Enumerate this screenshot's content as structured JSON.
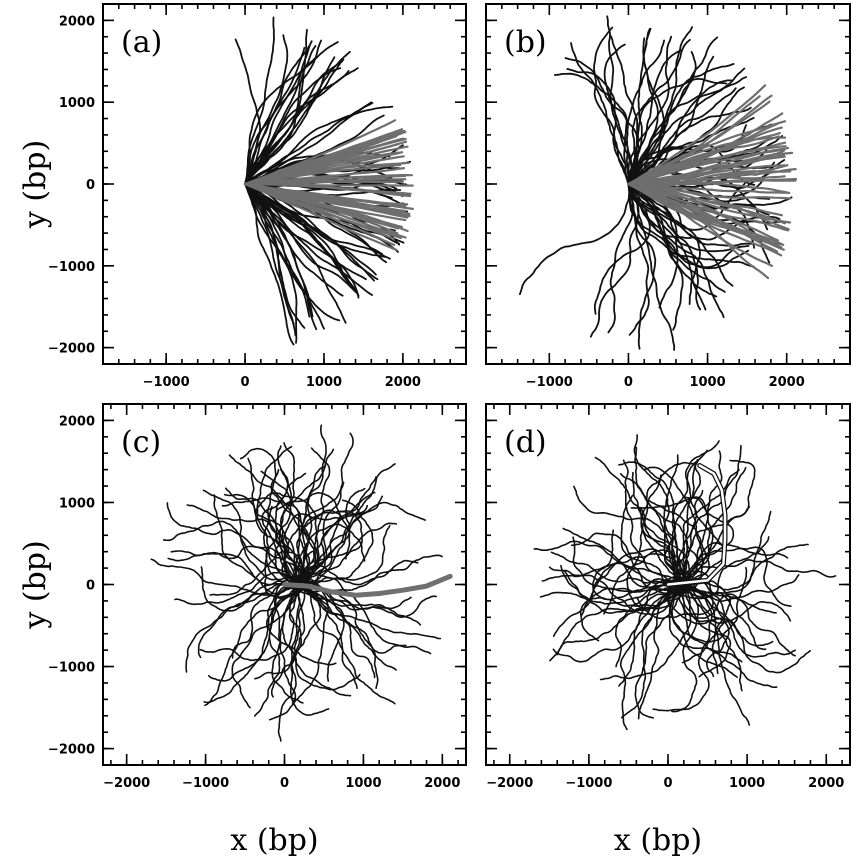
{
  "chart_data": [
    {
      "type": "line",
      "panel_label": "(a)",
      "xlabel": "",
      "ylabel": "y (bp)",
      "xlim": [
        -1800,
        2800
      ],
      "ylim": [
        -2200,
        2200
      ],
      "xticks": [
        -1000,
        0,
        1000,
        2000
      ],
      "yticks": [
        -2000,
        -1000,
        0,
        1000,
        2000
      ],
      "xtick_labels": [
        "−1000",
        "0",
        "1000",
        "2000"
      ],
      "ytick_labels": [
        "−2000",
        "−1000",
        "0",
        "1000",
        "2000"
      ],
      "trajectories": {
        "count_dark": 70,
        "count_gray": 45,
        "origin": [
          0,
          0
        ],
        "contour_length_bp": 2150,
        "persistence": "high",
        "fan_half_angle_deg": 22
      },
      "colors": {
        "dark": "#111111",
        "gray": "#6e6e6e"
      }
    },
    {
      "type": "line",
      "panel_label": "(b)",
      "xlabel": "",
      "ylabel": "",
      "xlim": [
        -1800,
        2800
      ],
      "ylim": [
        -2200,
        2200
      ],
      "xticks": [
        -1000,
        0,
        1000,
        2000
      ],
      "yticks": [
        -2000,
        -1000,
        0,
        1000,
        2000
      ],
      "xtick_labels": [
        "−1000",
        "0",
        "1000",
        "2000"
      ],
      "ytick_labels": [],
      "trajectories": {
        "count_dark": 70,
        "count_gray": 45,
        "origin": [
          0,
          0
        ],
        "contour_length_bp": 2150,
        "persistence": "medium",
        "fan_half_angle_deg": 30
      },
      "colors": {
        "dark": "#111111",
        "gray": "#6e6e6e"
      }
    },
    {
      "type": "line",
      "panel_label": "(c)",
      "xlabel": "x (bp)",
      "ylabel": "y (bp)",
      "xlim": [
        -2300,
        2300
      ],
      "ylim": [
        -2200,
        2200
      ],
      "xticks": [
        -2000,
        -1000,
        0,
        1000,
        2000
      ],
      "yticks": [
        -2000,
        -1000,
        0,
        1000,
        2000
      ],
      "xtick_labels": [
        "−2000",
        "−1000",
        "0",
        "1000",
        "2000"
      ],
      "ytick_labels": [
        "−2000",
        "−1000",
        "0",
        "1000",
        "2000"
      ],
      "trajectories": {
        "count_dark": 80,
        "origin": [
          0,
          0
        ],
        "contour_length_bp": 2150,
        "highlight": {
          "color": "#707070",
          "points": [
            [
              0,
              0
            ],
            [
              300,
              -20
            ],
            [
              600,
              -90
            ],
            [
              900,
              -130
            ],
            [
              1200,
              -110
            ],
            [
              1500,
              -70
            ],
            [
              1800,
              -20
            ],
            [
              2100,
              100
            ]
          ]
        }
      },
      "colors": {
        "dark": "#111111"
      }
    },
    {
      "type": "line",
      "panel_label": "(d)",
      "xlabel": "x (bp)",
      "ylabel": "",
      "xlim": [
        -2300,
        2300
      ],
      "ylim": [
        -2200,
        2200
      ],
      "xticks": [
        -2000,
        -1000,
        0,
        1000,
        2000
      ],
      "yticks": [
        -2000,
        -1000,
        0,
        1000,
        2000
      ],
      "xtick_labels": [
        "−2000",
        "−1000",
        "0",
        "1000",
        "2000"
      ],
      "ytick_labels": [],
      "trajectories": {
        "count_dark": 80,
        "origin": [
          0,
          0
        ],
        "contour_length_bp": 2150,
        "highlight": {
          "color": "#ffffff",
          "points": [
            [
              0,
              0
            ],
            [
              500,
              50
            ],
            [
              700,
              250
            ],
            [
              720,
              550
            ],
            [
              720,
              850
            ],
            [
              680,
              1150
            ],
            [
              580,
              1350
            ],
            [
              400,
              1450
            ]
          ]
        }
      },
      "colors": {
        "dark": "#111111"
      }
    }
  ]
}
